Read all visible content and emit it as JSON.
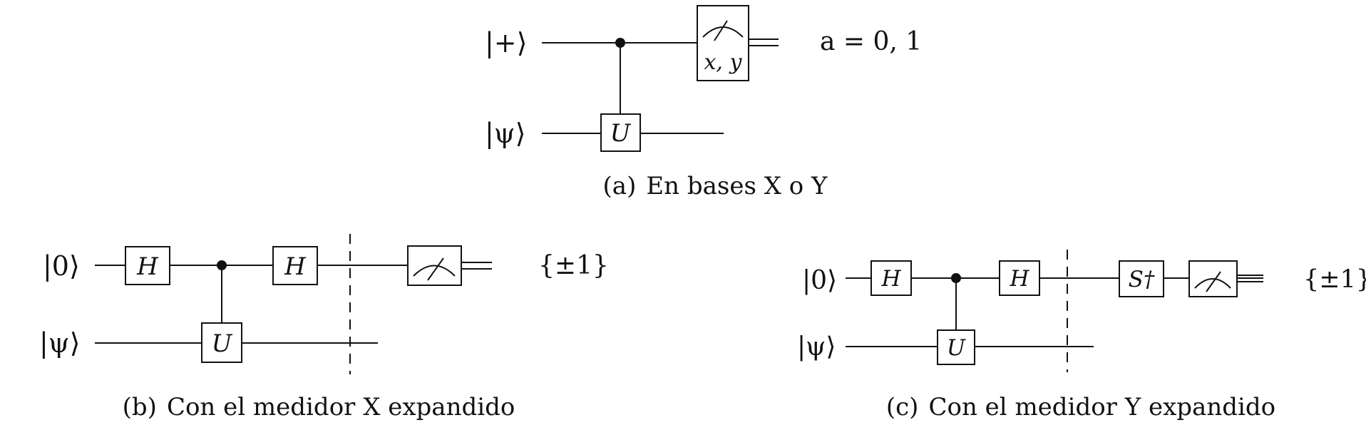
{
  "circuit_a": {
    "input_top": "|+⟩",
    "input_bottom": "|ψ⟩",
    "gate_u": "U",
    "meter_label": "x, y",
    "outcome": "a = 0, 1",
    "caption_tag": "(a)",
    "caption_text": "En bases X o Y"
  },
  "circuit_b": {
    "input_top": "|0⟩",
    "input_bottom": "|ψ⟩",
    "gate_h1": "H",
    "gate_h2": "H",
    "gate_u": "U",
    "outcome": "{±1}",
    "caption_tag": "(b)",
    "caption_text": "Con el medidor X expandido"
  },
  "circuit_c": {
    "input_top": "|0⟩",
    "input_bottom": "|ψ⟩",
    "gate_h1": "H",
    "gate_h2": "H",
    "gate_u": "U",
    "gate_s": "S†",
    "outcome": "{±1}",
    "caption_tag": "(c)",
    "caption_text": "Con el medidor Y expandido"
  }
}
